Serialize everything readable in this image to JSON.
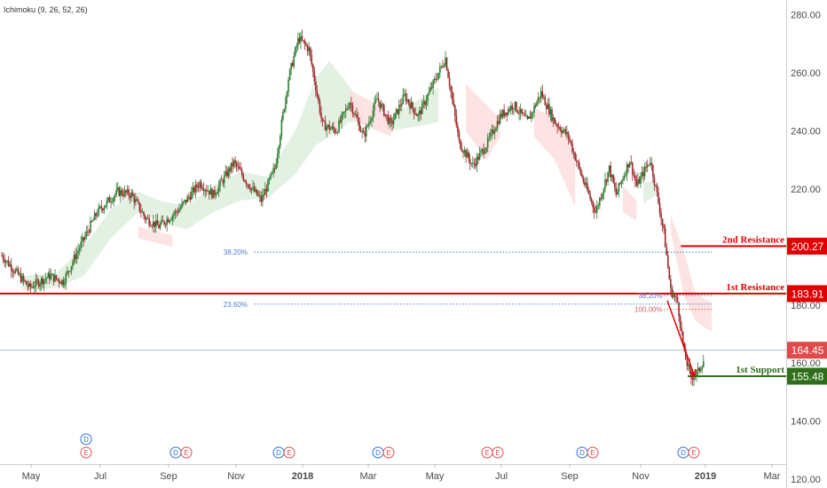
{
  "chart_data": {
    "type": "candlestick",
    "indicator": "Ichimoku (9, 26, 52, 26)",
    "x_tick_labels": [
      "May",
      "Jul",
      "Sep",
      "Nov",
      "2018",
      "Mar",
      "May",
      "Jul",
      "Sep",
      "Nov",
      "2019",
      "Mar"
    ],
    "y_tick_labels": [
      "280.00",
      "260.00",
      "240.00",
      "220.00",
      "200.00",
      "180.00",
      "160.00",
      "140.00",
      "120.00"
    ],
    "ylim": [
      117,
      285
    ],
    "price_path": [
      [
        0,
        197
      ],
      [
        4,
        186
      ],
      [
        7,
        190
      ],
      [
        9,
        188
      ],
      [
        11,
        198
      ],
      [
        14,
        212
      ],
      [
        17,
        219
      ],
      [
        19,
        218
      ],
      [
        21,
        210
      ],
      [
        23,
        207
      ],
      [
        26,
        213
      ],
      [
        29,
        222
      ],
      [
        31,
        218
      ],
      [
        34,
        229
      ],
      [
        36,
        222
      ],
      [
        38,
        216
      ],
      [
        40,
        227
      ],
      [
        42,
        258
      ],
      [
        43.5,
        272
      ],
      [
        45,
        268
      ],
      [
        47,
        242
      ],
      [
        49,
        240
      ],
      [
        51,
        250
      ],
      [
        53,
        238
      ],
      [
        55,
        251
      ],
      [
        57,
        242
      ],
      [
        59,
        252
      ],
      [
        61,
        245
      ],
      [
        63,
        255
      ],
      [
        65,
        265
      ],
      [
        67,
        236
      ],
      [
        69,
        228
      ],
      [
        71,
        235
      ],
      [
        73,
        245
      ],
      [
        75,
        249
      ],
      [
        77,
        243
      ],
      [
        79,
        253
      ],
      [
        81,
        243
      ],
      [
        83,
        238
      ],
      [
        85,
        224
      ],
      [
        87,
        212
      ],
      [
        89,
        227
      ],
      [
        90,
        218
      ],
      [
        92,
        230
      ],
      [
        93,
        221
      ],
      [
        95,
        230
      ],
      [
        96,
        218
      ],
      [
        97,
        205
      ],
      [
        98,
        185
      ],
      [
        99,
        181
      ],
      [
        100,
        163
      ],
      [
        101,
        155
      ],
      [
        102,
        157
      ],
      [
        103,
        162
      ]
    ],
    "cloud": [
      {
        "kind": "bull",
        "points": [
          [
            3,
            190,
            185
          ],
          [
            8,
            191,
            186
          ],
          [
            12,
            200,
            190
          ],
          [
            16,
            213,
            203
          ],
          [
            20,
            219,
            212
          ],
          [
            23,
            216,
            209
          ],
          [
            27,
            214,
            206
          ],
          [
            31,
            221,
            212
          ],
          [
            35,
            226,
            216
          ],
          [
            39,
            224,
            217
          ]
        ]
      },
      {
        "kind": "bear",
        "points": [
          [
            20,
            207,
            203
          ],
          [
            25,
            204,
            200
          ]
        ]
      },
      {
        "kind": "bull",
        "points": [
          [
            39,
            225,
            217
          ],
          [
            43,
            240,
            225
          ],
          [
            46,
            258,
            235
          ],
          [
            48,
            264,
            238
          ],
          [
            51,
            255,
            243
          ],
          [
            53,
            248,
            243
          ]
        ]
      },
      {
        "kind": "bear",
        "points": [
          [
            51,
            254,
            244
          ],
          [
            55,
            249,
            240
          ],
          [
            57,
            244,
            238
          ]
        ]
      },
      {
        "kind": "bull",
        "points": [
          [
            57,
            245,
            240
          ],
          [
            62,
            252,
            242
          ],
          [
            64,
            255,
            243
          ]
        ]
      },
      {
        "kind": "bear",
        "points": [
          [
            68,
            256,
            240
          ],
          [
            71,
            249,
            230
          ],
          [
            73,
            244,
            238
          ]
        ]
      },
      {
        "kind": "bear",
        "points": [
          [
            78,
            248,
            238
          ],
          [
            81,
            244,
            230
          ],
          [
            84,
            232,
            214
          ]
        ]
      },
      {
        "kind": "bear",
        "points": [
          [
            91,
            221,
            212
          ],
          [
            93,
            216,
            209
          ]
        ]
      },
      {
        "kind": "bull",
        "points": [
          [
            94,
            222,
            215
          ],
          [
            96,
            223,
            218
          ]
        ]
      },
      {
        "kind": "bear",
        "points": [
          [
            98,
            211,
            205
          ],
          [
            100,
            198,
            183
          ],
          [
            101.5,
            185,
            175
          ],
          [
            103,
            182,
            172
          ],
          [
            104,
            181,
            171
          ]
        ]
      }
    ],
    "horizontal_lines": [
      {
        "name": "1st Resistance",
        "value": 183.91,
        "label": "1st Resistance",
        "badge": "183.91",
        "color": "#e00000",
        "full_width": true
      },
      {
        "name": "2nd Resistance",
        "value": 200.27,
        "label": "2nd Resistance",
        "badge": "200.27",
        "color": "#e00000",
        "full_width": false
      },
      {
        "name": "1st Support",
        "value": 155.48,
        "label": "1st Support",
        "badge": "155.48",
        "color": "#2e6e1a",
        "full_width": false
      },
      {
        "name": "Last price",
        "value": 164.45,
        "label": "",
        "badge": "164.45",
        "color": "#e04a4a",
        "full_width": true
      }
    ],
    "fib_levels": [
      {
        "label": "38.20%",
        "value": 198.2
      },
      {
        "label": "23.60%",
        "value": 180.3
      },
      {
        "label": "38.20%",
        "value": 183.3
      },
      {
        "label": "100.00%",
        "value": 178.5
      }
    ],
    "events": [
      {
        "x": 17,
        "stack": [
          "D",
          "E"
        ]
      },
      {
        "x": 30,
        "stack": [
          "D",
          "E"
        ]
      },
      {
        "x": 49.3,
        "stack": [
          "D",
          "E"
        ]
      },
      {
        "x": 68,
        "stack": [
          "D",
          "E"
        ]
      },
      {
        "x": 77,
        "stack": [
          "E",
          "E"
        ]
      },
      {
        "x": 85.7,
        "stack": [
          "D",
          "E"
        ]
      },
      {
        "x": 94.7,
        "stack": [
          "D",
          "E"
        ]
      }
    ],
    "projection": {
      "from": [
        97.5,
        181.5
      ],
      "to": [
        101.5,
        155.5
      ]
    },
    "colors": {
      "up": "#2f7d32",
      "down": "#9b2c2c",
      "bull_cloud": "#dff0df",
      "bear_cloud": "#fde0e0",
      "resistance": "#e00000",
      "support": "#2e6e1a",
      "fib_blue": "#4a7fd4",
      "fib_red": "#e06060",
      "last_price": "#e04a4a",
      "ev_D": "#2f6fdc",
      "ev_E": "#e05050"
    }
  }
}
